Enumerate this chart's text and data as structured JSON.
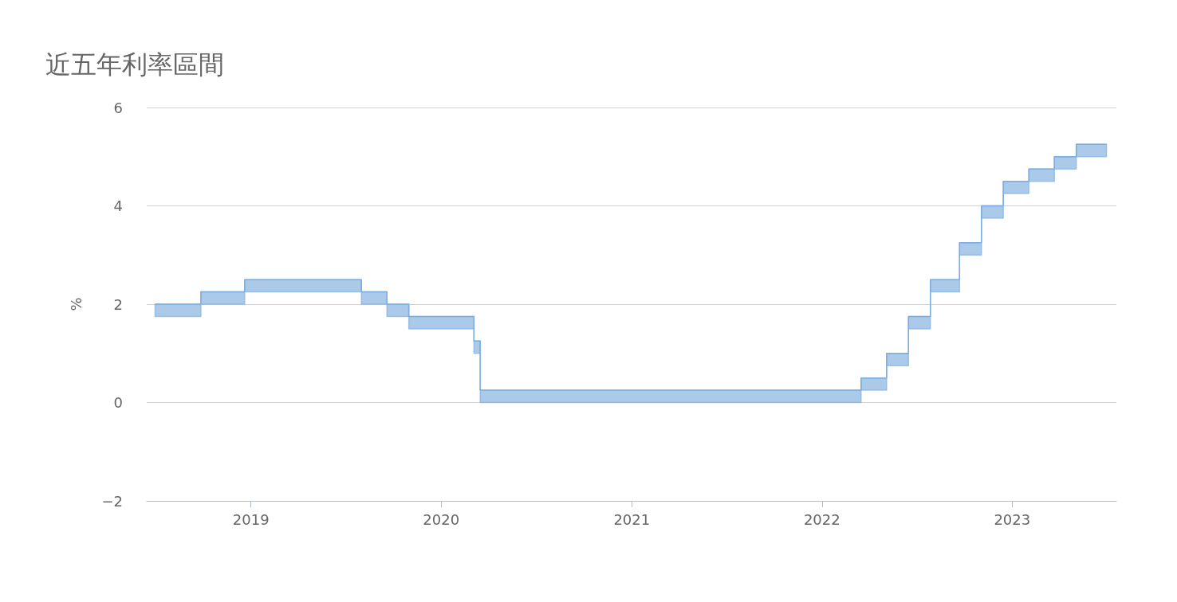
{
  "chart_data": {
    "type": "step",
    "title": "近五年利率區間",
    "ylabel": "%",
    "x": [
      "2018-07-01",
      "2018-09-27",
      "2018-12-20",
      "2019-08-01",
      "2019-09-19",
      "2019-10-31",
      "2020-03-04",
      "2020-03-16",
      "2022-03-17",
      "2022-05-05",
      "2022-06-16",
      "2022-07-28",
      "2022-09-22",
      "2022-11-03",
      "2022-12-15",
      "2023-02-02",
      "2023-03-23",
      "2023-05-04",
      "2023-07-01"
    ],
    "series": [
      {
        "color": "#7eaedf",
        "values": [
          2.0,
          2.25,
          2.5,
          2.25,
          2.0,
          1.75,
          1.25,
          0.25,
          0.5,
          1.0,
          1.75,
          2.5,
          3.25,
          4.0,
          4.5,
          4.75,
          5.0,
          5.25,
          5.25
        ],
        "upper": [
          2.0,
          2.25,
          2.5,
          2.25,
          2.0,
          1.75,
          1.25,
          0.25,
          0.5,
          1.0,
          1.75,
          2.5,
          3.25,
          4.0,
          4.5,
          4.75,
          5.0,
          5.25,
          5.25
        ],
        "lower": [
          1.75,
          2.0,
          2.25,
          2.0,
          1.75,
          1.5,
          1.0,
          0.0,
          0.25,
          0.75,
          1.5,
          2.25,
          3.0,
          3.75,
          4.25,
          4.5,
          4.75,
          5.0,
          5.0
        ]
      }
    ],
    "xlim": [
      "2018-06-15",
      "2023-07-20"
    ],
    "xticks": [
      "2019",
      "2020",
      "2021",
      "2022",
      "2023"
    ],
    "ylim": [
      -2,
      6
    ],
    "yticks": [
      {
        "value": -2,
        "label": "−2"
      },
      0,
      2,
      4,
      6
    ],
    "grid": "y"
  }
}
